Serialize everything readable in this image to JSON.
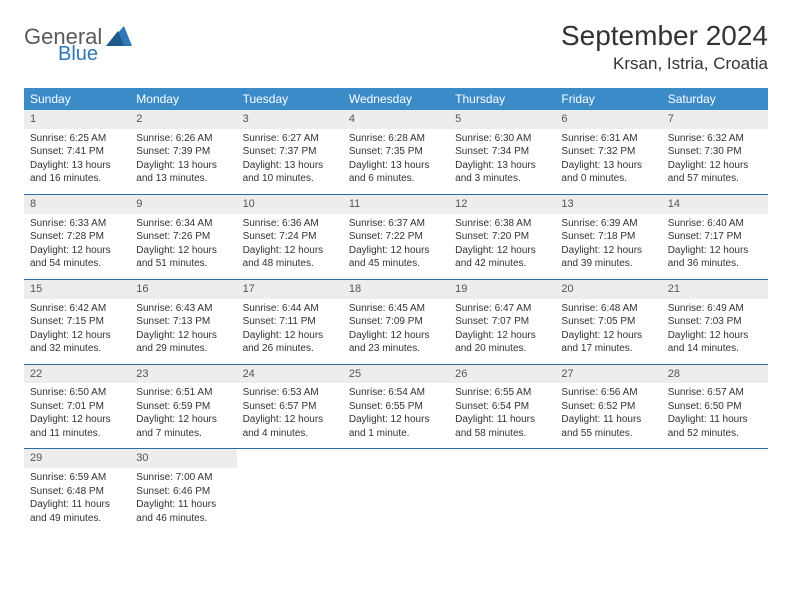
{
  "logo": {
    "general": "General",
    "blue": "Blue"
  },
  "title": "September 2024",
  "location": "Krsan, Istria, Croatia",
  "weekdays": [
    "Sunday",
    "Monday",
    "Tuesday",
    "Wednesday",
    "Thursday",
    "Friday",
    "Saturday"
  ],
  "header_bg": "#3b8bc9",
  "daynum_bg": "#ededed",
  "rule_color": "#2e6da4",
  "weeks": [
    [
      {
        "n": "1",
        "sr": "Sunrise: 6:25 AM",
        "ss": "Sunset: 7:41 PM",
        "d1": "Daylight: 13 hours",
        "d2": "and 16 minutes."
      },
      {
        "n": "2",
        "sr": "Sunrise: 6:26 AM",
        "ss": "Sunset: 7:39 PM",
        "d1": "Daylight: 13 hours",
        "d2": "and 13 minutes."
      },
      {
        "n": "3",
        "sr": "Sunrise: 6:27 AM",
        "ss": "Sunset: 7:37 PM",
        "d1": "Daylight: 13 hours",
        "d2": "and 10 minutes."
      },
      {
        "n": "4",
        "sr": "Sunrise: 6:28 AM",
        "ss": "Sunset: 7:35 PM",
        "d1": "Daylight: 13 hours",
        "d2": "and 6 minutes."
      },
      {
        "n": "5",
        "sr": "Sunrise: 6:30 AM",
        "ss": "Sunset: 7:34 PM",
        "d1": "Daylight: 13 hours",
        "d2": "and 3 minutes."
      },
      {
        "n": "6",
        "sr": "Sunrise: 6:31 AM",
        "ss": "Sunset: 7:32 PM",
        "d1": "Daylight: 13 hours",
        "d2": "and 0 minutes."
      },
      {
        "n": "7",
        "sr": "Sunrise: 6:32 AM",
        "ss": "Sunset: 7:30 PM",
        "d1": "Daylight: 12 hours",
        "d2": "and 57 minutes."
      }
    ],
    [
      {
        "n": "8",
        "sr": "Sunrise: 6:33 AM",
        "ss": "Sunset: 7:28 PM",
        "d1": "Daylight: 12 hours",
        "d2": "and 54 minutes."
      },
      {
        "n": "9",
        "sr": "Sunrise: 6:34 AM",
        "ss": "Sunset: 7:26 PM",
        "d1": "Daylight: 12 hours",
        "d2": "and 51 minutes."
      },
      {
        "n": "10",
        "sr": "Sunrise: 6:36 AM",
        "ss": "Sunset: 7:24 PM",
        "d1": "Daylight: 12 hours",
        "d2": "and 48 minutes."
      },
      {
        "n": "11",
        "sr": "Sunrise: 6:37 AM",
        "ss": "Sunset: 7:22 PM",
        "d1": "Daylight: 12 hours",
        "d2": "and 45 minutes."
      },
      {
        "n": "12",
        "sr": "Sunrise: 6:38 AM",
        "ss": "Sunset: 7:20 PM",
        "d1": "Daylight: 12 hours",
        "d2": "and 42 minutes."
      },
      {
        "n": "13",
        "sr": "Sunrise: 6:39 AM",
        "ss": "Sunset: 7:18 PM",
        "d1": "Daylight: 12 hours",
        "d2": "and 39 minutes."
      },
      {
        "n": "14",
        "sr": "Sunrise: 6:40 AM",
        "ss": "Sunset: 7:17 PM",
        "d1": "Daylight: 12 hours",
        "d2": "and 36 minutes."
      }
    ],
    [
      {
        "n": "15",
        "sr": "Sunrise: 6:42 AM",
        "ss": "Sunset: 7:15 PM",
        "d1": "Daylight: 12 hours",
        "d2": "and 32 minutes."
      },
      {
        "n": "16",
        "sr": "Sunrise: 6:43 AM",
        "ss": "Sunset: 7:13 PM",
        "d1": "Daylight: 12 hours",
        "d2": "and 29 minutes."
      },
      {
        "n": "17",
        "sr": "Sunrise: 6:44 AM",
        "ss": "Sunset: 7:11 PM",
        "d1": "Daylight: 12 hours",
        "d2": "and 26 minutes."
      },
      {
        "n": "18",
        "sr": "Sunrise: 6:45 AM",
        "ss": "Sunset: 7:09 PM",
        "d1": "Daylight: 12 hours",
        "d2": "and 23 minutes."
      },
      {
        "n": "19",
        "sr": "Sunrise: 6:47 AM",
        "ss": "Sunset: 7:07 PM",
        "d1": "Daylight: 12 hours",
        "d2": "and 20 minutes."
      },
      {
        "n": "20",
        "sr": "Sunrise: 6:48 AM",
        "ss": "Sunset: 7:05 PM",
        "d1": "Daylight: 12 hours",
        "d2": "and 17 minutes."
      },
      {
        "n": "21",
        "sr": "Sunrise: 6:49 AM",
        "ss": "Sunset: 7:03 PM",
        "d1": "Daylight: 12 hours",
        "d2": "and 14 minutes."
      }
    ],
    [
      {
        "n": "22",
        "sr": "Sunrise: 6:50 AM",
        "ss": "Sunset: 7:01 PM",
        "d1": "Daylight: 12 hours",
        "d2": "and 11 minutes."
      },
      {
        "n": "23",
        "sr": "Sunrise: 6:51 AM",
        "ss": "Sunset: 6:59 PM",
        "d1": "Daylight: 12 hours",
        "d2": "and 7 minutes."
      },
      {
        "n": "24",
        "sr": "Sunrise: 6:53 AM",
        "ss": "Sunset: 6:57 PM",
        "d1": "Daylight: 12 hours",
        "d2": "and 4 minutes."
      },
      {
        "n": "25",
        "sr": "Sunrise: 6:54 AM",
        "ss": "Sunset: 6:55 PM",
        "d1": "Daylight: 12 hours",
        "d2": "and 1 minute."
      },
      {
        "n": "26",
        "sr": "Sunrise: 6:55 AM",
        "ss": "Sunset: 6:54 PM",
        "d1": "Daylight: 11 hours",
        "d2": "and 58 minutes."
      },
      {
        "n": "27",
        "sr": "Sunrise: 6:56 AM",
        "ss": "Sunset: 6:52 PM",
        "d1": "Daylight: 11 hours",
        "d2": "and 55 minutes."
      },
      {
        "n": "28",
        "sr": "Sunrise: 6:57 AM",
        "ss": "Sunset: 6:50 PM",
        "d1": "Daylight: 11 hours",
        "d2": "and 52 minutes."
      }
    ],
    [
      {
        "n": "29",
        "sr": "Sunrise: 6:59 AM",
        "ss": "Sunset: 6:48 PM",
        "d1": "Daylight: 11 hours",
        "d2": "and 49 minutes."
      },
      {
        "n": "30",
        "sr": "Sunrise: 7:00 AM",
        "ss": "Sunset: 6:46 PM",
        "d1": "Daylight: 11 hours",
        "d2": "and 46 minutes."
      },
      {
        "empty": true
      },
      {
        "empty": true
      },
      {
        "empty": true
      },
      {
        "empty": true
      },
      {
        "empty": true
      }
    ]
  ]
}
